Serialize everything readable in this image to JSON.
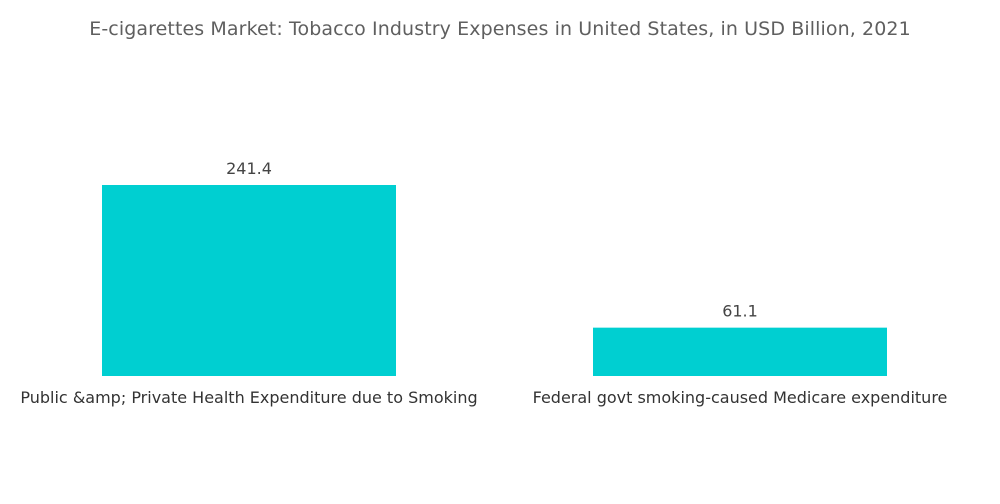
{
  "chart_data": {
    "type": "bar",
    "title": "E-cigarettes Market: Tobacco Industry Expenses in United States, in USD Billion, 2021",
    "categories": [
      "Public &amp; Private Health Expenditure due to Smoking",
      "Federal govt smoking-caused Medicare expenditure"
    ],
    "values": [
      241.4,
      61.1
    ],
    "value_labels": [
      "241.4",
      "61.1"
    ],
    "xlabel": "",
    "ylabel": "",
    "ylim": [
      0,
      241.4
    ],
    "grid": false,
    "legend": "none",
    "colors": {
      "bar": "#00cfd1",
      "title": "#5f5f5f",
      "label": "#444444"
    }
  }
}
